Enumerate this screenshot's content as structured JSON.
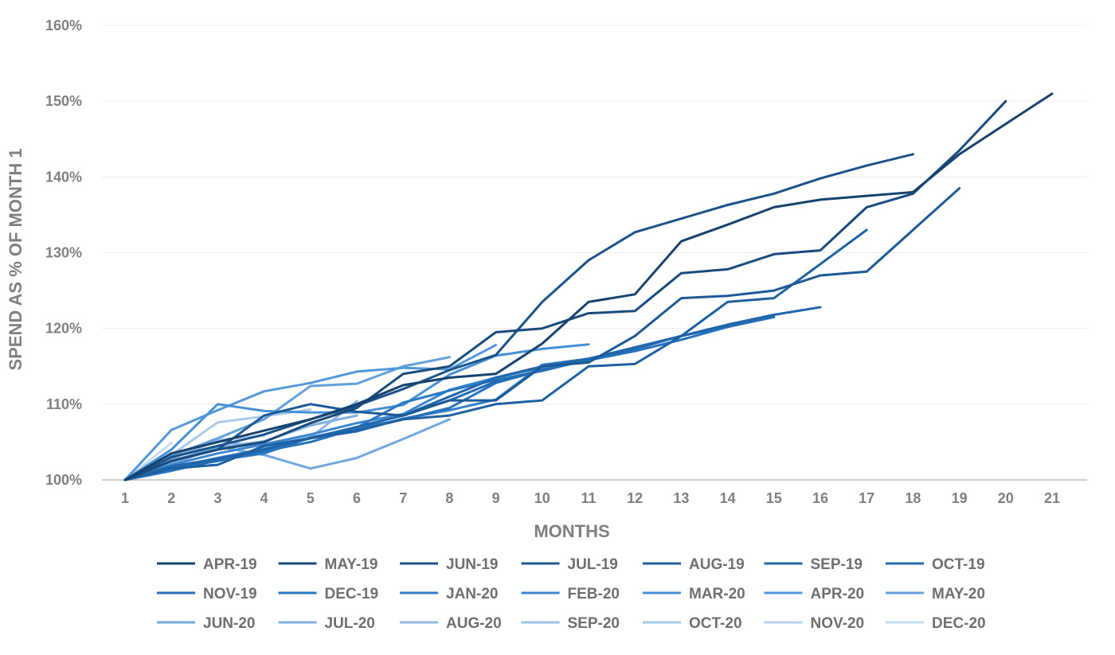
{
  "chart_data": {
    "type": "line",
    "xlabel": "MONTHS",
    "ylabel": "SPEND AS % OF MONTH 1",
    "xlim": [
      1,
      21
    ],
    "ylim": [
      100,
      160
    ],
    "x_ticks": [
      "1",
      "2",
      "3",
      "4",
      "5",
      "6",
      "7",
      "8",
      "9",
      "10",
      "11",
      "12",
      "13",
      "14",
      "15",
      "16",
      "17",
      "18",
      "19",
      "20",
      "21"
    ],
    "y_ticks": [
      "100%",
      "110%",
      "120%",
      "130%",
      "140%",
      "150%",
      "160%"
    ],
    "grid": "horizontal",
    "legend_position": "bottom",
    "series": [
      {
        "name": "APR-19",
        "color": "#17426e",
        "values": [
          100,
          103.5,
          105,
          106.5,
          108,
          110,
          112.5,
          113.5,
          114,
          118,
          123.5,
          124.5,
          131.5,
          133.7,
          136,
          137,
          137.5,
          138,
          143,
          147,
          151
        ]
      },
      {
        "name": "MAY-19",
        "color": "#184a7b",
        "values": [
          100,
          102.5,
          104,
          105,
          107.5,
          109.5,
          114,
          115,
          119.5,
          120,
          122,
          122.3,
          127.3,
          127.8,
          129.8,
          130.3,
          136,
          137.8,
          143.5,
          150
        ]
      },
      {
        "name": "JUN-19",
        "color": "#1b5289",
        "values": [
          100,
          103,
          104.5,
          106,
          108,
          109.8,
          112,
          114.5,
          116.5,
          123.5,
          129,
          132.7,
          134.5,
          136.3,
          137.8,
          139.8,
          141.5,
          143
        ]
      },
      {
        "name": "JUL-19",
        "color": "#1d5a95",
        "values": [
          100,
          102.5,
          104,
          108.5,
          110,
          109,
          108.5,
          110.5,
          110.5,
          115,
          115.5,
          119,
          124,
          124.3,
          125,
          127,
          127.5,
          133,
          138.5
        ]
      },
      {
        "name": "AUG-19",
        "color": "#1f60a0",
        "values": [
          100,
          101.5,
          102,
          104.5,
          105.5,
          106.5,
          108,
          108.5,
          110,
          110.5,
          115,
          115.3,
          119,
          123.5,
          124,
          128.5,
          133
        ]
      },
      {
        "name": "SEP-19",
        "color": "#2166aa",
        "values": [
          100,
          101.8,
          102.8,
          104,
          105.5,
          107,
          108.5,
          111,
          113.5,
          115,
          116,
          117.5,
          119,
          120.5,
          121.8,
          122.8
        ]
      },
      {
        "name": "OCT-19",
        "color": "#236cb3",
        "values": [
          100,
          101.5,
          102.5,
          104,
          105.5,
          107,
          108.5,
          110.5,
          113,
          114.5,
          116,
          117.3,
          119,
          120.3,
          121.7
        ]
      },
      {
        "name": "NOV-19",
        "color": "#2672bc",
        "values": [
          100,
          101.5,
          102.5,
          103.8,
          105,
          106.8,
          108,
          109.5,
          112.8,
          114.5,
          115.8,
          117,
          118.5,
          120.2,
          121.5
        ]
      },
      {
        "name": "DEC-19",
        "color": "#2a78c4",
        "values": [
          100,
          101.2,
          102.6,
          103.5,
          105.6,
          106.9,
          110.2,
          111.8,
          113.2,
          114.4,
          115.9
        ]
      },
      {
        "name": "JAN-20",
        "color": "#327fcb",
        "values": [
          100,
          101.6,
          102.9,
          104.1,
          105.5,
          106.4,
          108.1,
          109.2,
          110.6,
          115.2,
          116
        ]
      },
      {
        "name": "FEB-20",
        "color": "#3b86d0",
        "values": [
          100,
          102,
          103.5,
          104.7,
          106,
          107.5,
          108.7,
          111.9,
          113.5,
          114.8,
          115.8
        ]
      },
      {
        "name": "MAR-20",
        "color": "#4690d6",
        "values": [
          100,
          104,
          110,
          109.1,
          108.9,
          108.9,
          109.9,
          113.9,
          116.4,
          117.3,
          117.9
        ]
      },
      {
        "name": "APR-20",
        "color": "#5397da",
        "values": [
          100,
          106.6,
          109.2,
          111.7,
          112.8,
          114.3,
          114.8,
          114.6,
          117.8
        ]
      },
      {
        "name": "MAY-20",
        "color": "#629fdd",
        "values": [
          100,
          103.2,
          105.5,
          108,
          112.4,
          112.7,
          115,
          116.2
        ]
      },
      {
        "name": "JUN-20",
        "color": "#71a7e0",
        "values": [
          100,
          102.4,
          104.4,
          103.3,
          101.5,
          102.9,
          105.4,
          108
        ]
      },
      {
        "name": "JUL-20",
        "color": "#80b0e3",
        "values": [
          100,
          102.1,
          104.3,
          105.1,
          107.2,
          108.5
        ]
      },
      {
        "name": "AUG-20",
        "color": "#8fb8e6",
        "values": [
          100,
          102.8,
          105.2,
          104.3,
          105.6,
          110.4
        ]
      },
      {
        "name": "SEP-20",
        "color": "#9dc1e8",
        "values": [
          100,
          102.6,
          104.1,
          104.8,
          105.8
        ]
      },
      {
        "name": "OCT-20",
        "color": "#abcaeb",
        "values": [
          100,
          103.3,
          107.6,
          108.4,
          109.3
        ]
      },
      {
        "name": "NOV-20",
        "color": "#b9d3ee",
        "values": [
          100,
          103,
          105.3,
          105.8
        ]
      },
      {
        "name": "DEC-20",
        "color": "#c7dcf1",
        "values": [
          100,
          104.9
        ]
      }
    ]
  }
}
